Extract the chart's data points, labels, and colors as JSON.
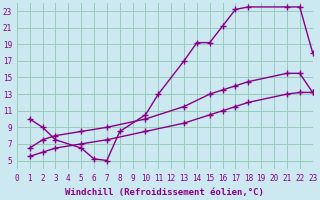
{
  "xlabel": "Windchill (Refroidissement éolien,°C)",
  "bg_color": "#cce8f0",
  "grid_color": "#99ccbb",
  "line_color": "#880088",
  "xlim": [
    0,
    23
  ],
  "ylim": [
    4,
    24
  ],
  "xticks": [
    0,
    1,
    2,
    3,
    4,
    5,
    6,
    7,
    8,
    9,
    10,
    11,
    12,
    13,
    14,
    15,
    16,
    17,
    18,
    19,
    20,
    21,
    22,
    23
  ],
  "yticks": [
    5,
    7,
    9,
    11,
    13,
    15,
    17,
    19,
    21,
    23
  ],
  "line1_x": [
    1,
    2,
    3,
    5,
    6,
    7,
    8,
    10,
    11,
    13,
    14,
    15,
    16,
    17,
    18,
    21,
    22,
    23
  ],
  "line1_y": [
    10.0,
    9.0,
    7.5,
    6.5,
    5.2,
    5.0,
    8.5,
    10.5,
    13.0,
    17.0,
    19.2,
    19.2,
    21.2,
    23.2,
    23.5,
    23.5,
    23.5,
    18.0
  ],
  "line2_x": [
    1,
    2,
    3,
    5,
    7,
    10,
    13,
    15,
    16,
    17,
    18,
    21,
    22,
    23
  ],
  "line2_y": [
    6.5,
    7.5,
    8.0,
    8.5,
    9.0,
    10.0,
    11.5,
    13.0,
    13.5,
    14.0,
    14.5,
    15.5,
    15.5,
    13.2
  ],
  "line3_x": [
    1,
    2,
    3,
    5,
    7,
    10,
    13,
    15,
    16,
    17,
    18,
    21,
    22,
    23
  ],
  "line3_y": [
    5.5,
    6.0,
    6.5,
    7.0,
    7.5,
    8.5,
    9.5,
    10.5,
    11.0,
    11.5,
    12.0,
    13.0,
    13.2,
    13.2
  ],
  "marker": "+",
  "markersize": 4,
  "linewidth": 1.0,
  "xlabel_fontsize": 6.5,
  "tick_fontsize": 5.5,
  "tick_color": "#880088",
  "xlabel_color": "#880088"
}
